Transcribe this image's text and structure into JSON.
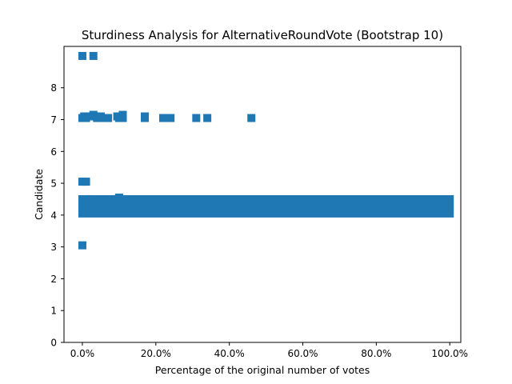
{
  "colors": {
    "marker": "#1f77b4",
    "axes": "#000000",
    "background": "#ffffff"
  },
  "chart_data": {
    "type": "scatter",
    "title": "Sturdiness Analysis for AlternativeRoundVote (Bootstrap 10)",
    "xlabel": "Percentage of the original number of votes",
    "ylabel": "Candidate",
    "xlim": [
      -0.05,
      1.03
    ],
    "ylim": [
      0,
      9.3
    ],
    "x_tick_values": [
      0.0,
      0.2,
      0.4,
      0.6,
      0.8,
      1.0
    ],
    "x_tick_labels": [
      "0.0%",
      "20.0%",
      "40.0%",
      "60.0%",
      "80.0%",
      "100.0%"
    ],
    "y_ticks": [
      0,
      1,
      2,
      3,
      4,
      5,
      6,
      7,
      8
    ],
    "grid": false,
    "legend": "none",
    "marker": "square",
    "series": [
      {
        "points": [
          [
            0.0,
            9.0
          ],
          [
            0.03,
            9.0
          ],
          [
            0.0,
            7.05
          ],
          [
            0.005,
            7.1
          ],
          [
            0.01,
            7.05
          ],
          [
            0.02,
            7.1
          ],
          [
            0.03,
            7.15
          ],
          [
            0.04,
            7.05
          ],
          [
            0.05,
            7.1
          ],
          [
            0.06,
            7.05
          ],
          [
            0.07,
            7.05
          ],
          [
            0.095,
            7.1
          ],
          [
            0.1,
            7.05
          ],
          [
            0.11,
            7.15
          ],
          [
            0.11,
            7.05
          ],
          [
            0.17,
            7.1
          ],
          [
            0.17,
            7.05
          ],
          [
            0.22,
            7.05
          ],
          [
            0.24,
            7.05
          ],
          [
            0.31,
            7.05
          ],
          [
            0.34,
            7.05
          ],
          [
            0.46,
            7.05
          ],
          [
            0.0,
            5.05
          ],
          [
            0.01,
            5.05
          ],
          [
            0.0,
            3.05
          ],
          [
            0.02,
            4.5
          ],
          [
            0.09,
            4.5
          ],
          [
            0.1,
            4.55
          ],
          [
            0.11,
            4.5
          ]
        ],
        "band": {
          "x_start": 0.0,
          "x_end": 1.0,
          "y_low": 4.05,
          "y_high": 4.5
        }
      }
    ]
  }
}
